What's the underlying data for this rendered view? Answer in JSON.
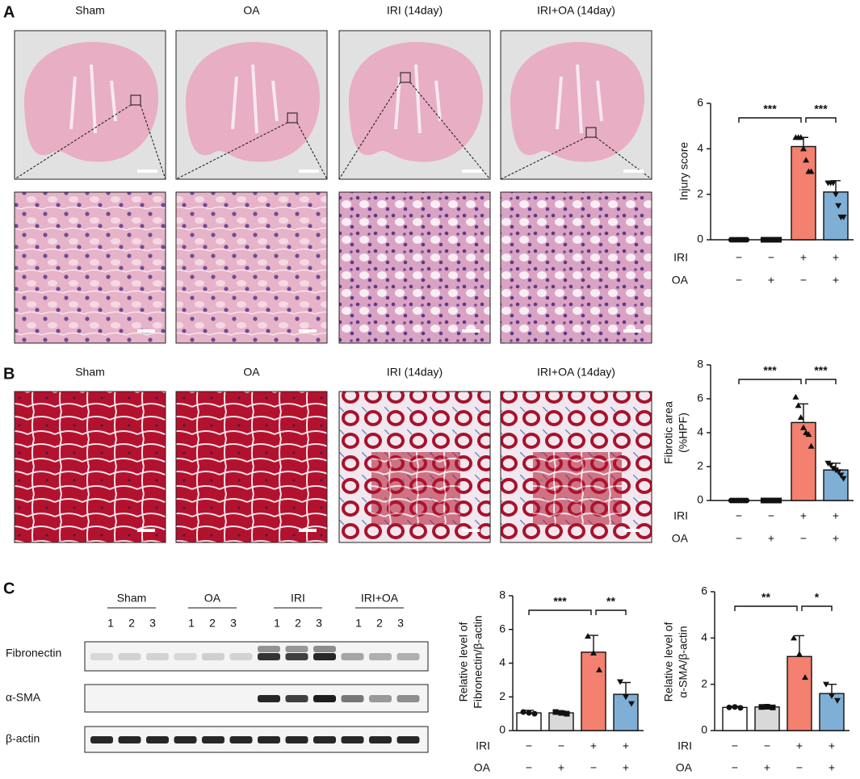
{
  "panels": {
    "A": {
      "letter": "A",
      "titles": [
        "Sham",
        "OA",
        "IRI (14day)",
        "IRI+OA (14day)"
      ]
    },
    "B": {
      "letter": "B",
      "titles": [
        "Sham",
        "OA",
        "IRI (14day)",
        "IRI+OA (14day)"
      ]
    },
    "C": {
      "letter": "C",
      "groups": [
        "Sham",
        "OA",
        "IRI",
        "IRI+OA"
      ],
      "lanes": [
        "1",
        "2",
        "3"
      ],
      "blots": [
        "Fibronectin",
        "α-SMA",
        "β-actin"
      ]
    }
  },
  "chart_data": [
    {
      "type": "bar",
      "y_label": [
        "Injury score"
      ],
      "ylim": [
        0,
        6
      ],
      "yticks": [
        0,
        2,
        4,
        6
      ],
      "values": [
        0,
        0,
        4.1,
        2.1
      ],
      "errors": [
        0,
        0,
        0.4,
        0.5
      ],
      "points": [
        [
          0,
          0,
          0,
          0,
          0,
          0,
          0
        ],
        [
          0,
          0,
          0,
          0,
          0,
          0,
          0
        ],
        [
          4.5,
          4.5,
          4.5,
          4,
          3.5,
          3,
          3
        ],
        [
          2.5,
          2.5,
          2.5,
          2,
          1.5,
          1,
          1
        ]
      ],
      "colors": [
        "#ffffff",
        "#d9d9d9",
        "#f4806f",
        "#80afd6"
      ],
      "conditions": [
        {
          "name": "IRI",
          "signs": [
            "−",
            "−",
            "+",
            "+"
          ]
        },
        {
          "name": "OA",
          "signs": [
            "−",
            "+",
            "−",
            "+"
          ]
        }
      ],
      "annotations": [
        "***",
        "***"
      ]
    },
    {
      "type": "bar",
      "y_label": [
        "Fibrotic area",
        "(%HPF)"
      ],
      "ylim": [
        0,
        8
      ],
      "yticks": [
        0,
        2,
        4,
        6,
        8
      ],
      "values": [
        0,
        0,
        4.6,
        1.8
      ],
      "errors": [
        0,
        0,
        1.1,
        0.4
      ],
      "points": [
        [
          0,
          0,
          0,
          0,
          0,
          0,
          0
        ],
        [
          0,
          0,
          0,
          0,
          0,
          0,
          0
        ],
        [
          6.1,
          5.6,
          4.9,
          4.3,
          4,
          3.9,
          3.2
        ],
        [
          2.2,
          2.1,
          1.9,
          1.8,
          1.7,
          1.5,
          1.3
        ]
      ],
      "colors": [
        "#ffffff",
        "#d9d9d9",
        "#f4806f",
        "#80afd6"
      ],
      "conditions": [
        {
          "name": "IRI",
          "signs": [
            "−",
            "−",
            "+",
            "+"
          ]
        },
        {
          "name": "OA",
          "signs": [
            "−",
            "+",
            "−",
            "+"
          ]
        }
      ],
      "annotations": [
        "***",
        "***"
      ]
    },
    {
      "type": "bar",
      "y_label": [
        "Relative level of",
        "Fibronectin/β-actin"
      ],
      "ylim": [
        0,
        8
      ],
      "yticks": [
        0,
        2,
        4,
        6,
        8
      ],
      "values": [
        1.05,
        1.05,
        4.65,
        2.15
      ],
      "errors": [
        0.15,
        0.1,
        1.0,
        0.7
      ],
      "points": [
        [
          1.1,
          1.05,
          1.0
        ],
        [
          1.1,
          1.05,
          1.0
        ],
        [
          5.6,
          4.6,
          3.6
        ],
        [
          2.9,
          2.0,
          1.6
        ]
      ],
      "colors": [
        "#ffffff",
        "#d9d9d9",
        "#f4806f",
        "#80afd6"
      ],
      "conditions": [
        {
          "name": "IRI",
          "signs": [
            "−",
            "−",
            "+",
            "+"
          ]
        },
        {
          "name": "OA",
          "signs": [
            "−",
            "+",
            "−",
            "+"
          ]
        }
      ],
      "annotations": [
        "***",
        "**"
      ]
    },
    {
      "type": "bar",
      "y_label": [
        "Relative level of",
        "α-SMA/β-actin"
      ],
      "ylim": [
        0,
        6
      ],
      "yticks": [
        0,
        2,
        4,
        6
      ],
      "values": [
        1.0,
        1.02,
        3.2,
        1.6
      ],
      "errors": [
        0.05,
        0.05,
        0.9,
        0.4
      ],
      "points": [
        [
          1.0,
          1.02,
          0.98
        ],
        [
          1.02,
          1.03,
          1.0
        ],
        [
          4.0,
          3.3,
          2.3
        ],
        [
          2.0,
          1.5,
          1.3
        ]
      ],
      "colors": [
        "#ffffff",
        "#d9d9d9",
        "#f4806f",
        "#80afd6"
      ],
      "conditions": [
        {
          "name": "IRI",
          "signs": [
            "−",
            "−",
            "+",
            "+"
          ]
        },
        {
          "name": "OA",
          "signs": [
            "−",
            "+",
            "−",
            "+"
          ]
        }
      ],
      "annotations": [
        "**",
        "*"
      ]
    }
  ]
}
